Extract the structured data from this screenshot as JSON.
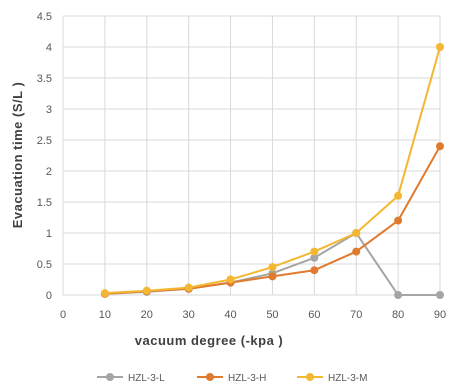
{
  "chart_data": {
    "type": "line",
    "title": "",
    "xlabel": "vacuum degree (-kpa )",
    "ylabel": "Evacuation time (S/L )",
    "x_ticks": [
      "0",
      "10",
      "20",
      "30",
      "40",
      "50",
      "60",
      "70",
      "80",
      "90"
    ],
    "y_ticks": [
      "0",
      "0.5",
      "1",
      "1.5",
      "2",
      "2.5",
      "3",
      "3.5",
      "4",
      "4.5"
    ],
    "xlim": [
      0,
      90
    ],
    "ylim": [
      0,
      4.5
    ],
    "grid": true,
    "legend_position": "bottom",
    "x": [
      10,
      20,
      30,
      40,
      50,
      60,
      70,
      80,
      90
    ],
    "series": [
      {
        "name": "HZL-3-L",
        "color": "#a5a5a5",
        "values": [
          0.02,
          0.05,
          0.1,
          0.2,
          0.35,
          0.6,
          1.0,
          0.0,
          0.0
        ]
      },
      {
        "name": "HZL-3-H",
        "color": "#e07a2e",
        "values": [
          0.02,
          0.06,
          0.1,
          0.2,
          0.3,
          0.4,
          0.7,
          1.2,
          2.4
        ]
      },
      {
        "name": "HZL-3-M",
        "color": "#f4b731",
        "values": [
          0.03,
          0.07,
          0.12,
          0.25,
          0.45,
          0.7,
          1.0,
          1.6,
          4.0
        ]
      }
    ]
  }
}
